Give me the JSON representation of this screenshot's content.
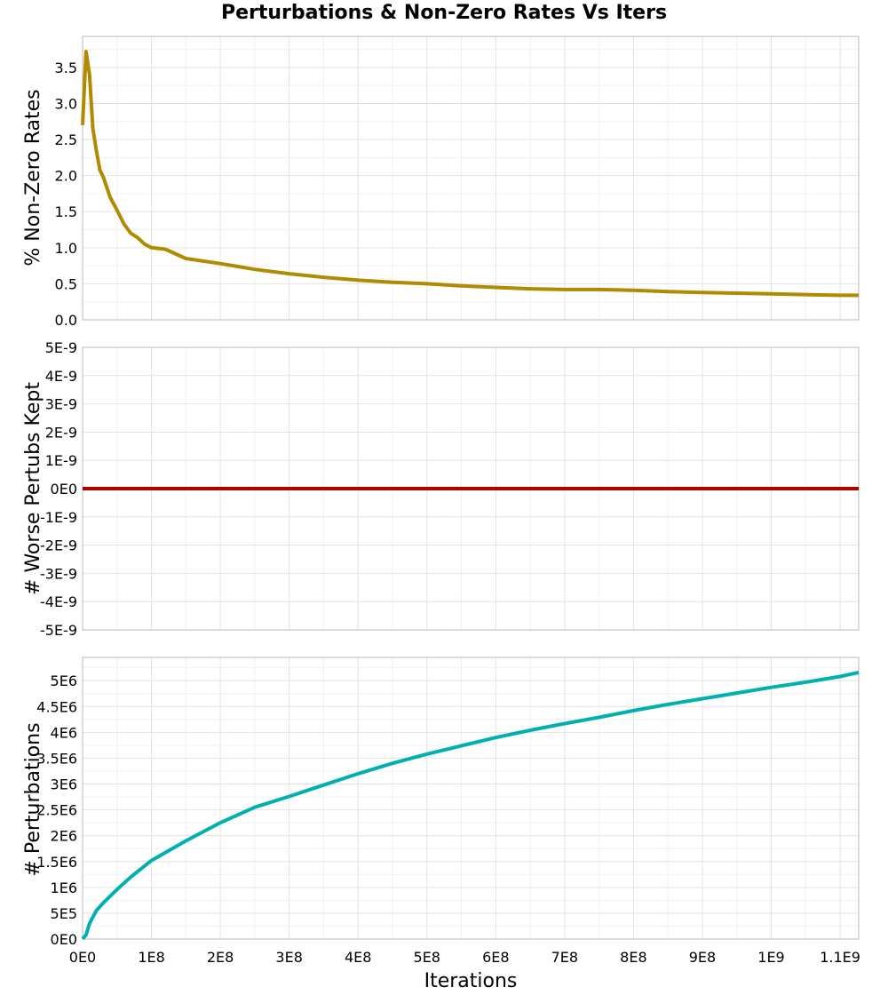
{
  "title": "Perturbations & Non-Zero Rates Vs Iters",
  "xlabel": "Iterations",
  "x_ticks": [
    "0E0",
    "1E8",
    "2E8",
    "3E8",
    "4E8",
    "5E8",
    "6E8",
    "7E8",
    "8E8",
    "9E8",
    "1E9",
    "1.1E9"
  ],
  "panels": [
    {
      "ylabel": "% Non-Zero Rates",
      "y_ticks": [
        "0.0",
        "0.5",
        "1.0",
        "1.5",
        "2.0",
        "2.5",
        "3.0",
        "3.5"
      ],
      "color": "#b08a00"
    },
    {
      "ylabel": "# Worse Pertubs Kept",
      "y_ticks": [
        "-5E-9",
        "-4E-9",
        "-3E-9",
        "-2E-9",
        "-1E-9",
        "0E0",
        "1E-9",
        "2E-9",
        "3E-9",
        "4E-9",
        "5E-9"
      ],
      "color": "#b00000"
    },
    {
      "ylabel": "# Perturbations",
      "y_ticks": [
        "0E0",
        "5E5",
        "1E6",
        "1.5E6",
        "2E6",
        "2.5E6",
        "3E6",
        "3.5E6",
        "4E6",
        "4.5E6",
        "5E6"
      ],
      "color": "#00b0b0"
    }
  ],
  "chart_data": [
    {
      "type": "line",
      "title": "Perturbations & Non-Zero Rates Vs Iters",
      "xlabel": "Iterations",
      "ylabel": "% Non-Zero Rates",
      "xlim": [
        0,
        1127000000.0
      ],
      "ylim": [
        0,
        3.9
      ],
      "grid": true,
      "series": [
        {
          "name": "% Non-Zero Rates",
          "color": "#b08a00",
          "x": [
            0,
            5000000.0,
            10000000.0,
            15000000.0,
            20000000.0,
            25000000.0,
            30000000.0,
            40000000.0,
            50000000.0,
            60000000.0,
            70000000.0,
            80000000.0,
            90000000.0,
            100000000.0,
            120000000.0,
            150000000.0,
            200000000.0,
            250000000.0,
            300000000.0,
            350000000.0,
            400000000.0,
            450000000.0,
            500000000.0,
            550000000.0,
            600000000.0,
            650000000.0,
            700000000.0,
            750000000.0,
            800000000.0,
            850000000.0,
            900000000.0,
            950000000.0,
            1000000000.0,
            1050000000.0,
            1100000000.0,
            1127000000.0
          ],
          "values": [
            2.7,
            3.72,
            3.4,
            2.65,
            2.35,
            2.08,
            1.98,
            1.7,
            1.52,
            1.33,
            1.2,
            1.14,
            1.05,
            1.0,
            0.98,
            0.85,
            0.78,
            0.7,
            0.64,
            0.59,
            0.55,
            0.52,
            0.5,
            0.47,
            0.45,
            0.43,
            0.42,
            0.42,
            0.41,
            0.39,
            0.38,
            0.37,
            0.36,
            0.35,
            0.34,
            0.34
          ]
        }
      ]
    },
    {
      "type": "line",
      "xlabel": "Iterations",
      "ylabel": "# Worse Pertubs Kept",
      "xlim": [
        0,
        1127000000.0
      ],
      "ylim": [
        -5e-09,
        5e-09
      ],
      "grid": true,
      "series": [
        {
          "name": "# Worse Pertubs Kept",
          "color": "#b00000",
          "x": [
            0,
            1127000000.0
          ],
          "values": [
            0,
            0
          ]
        }
      ]
    },
    {
      "type": "line",
      "xlabel": "Iterations",
      "ylabel": "# Perturbations",
      "xlim": [
        0,
        1127000000.0
      ],
      "ylim": [
        0,
        5400000.0
      ],
      "grid": true,
      "series": [
        {
          "name": "# Perturbations",
          "color": "#00b0b0",
          "x": [
            0,
            5000000.0,
            10000000.0,
            20000000.0,
            30000000.0,
            50000000.0,
            70000000.0,
            100000000.0,
            150000000.0,
            200000000.0,
            250000000.0,
            300000000.0,
            350000000.0,
            400000000.0,
            450000000.0,
            500000000.0,
            550000000.0,
            600000000.0,
            650000000.0,
            700000000.0,
            750000000.0,
            800000000.0,
            850000000.0,
            900000000.0,
            950000000.0,
            1000000000.0,
            1050000000.0,
            1100000000.0,
            1127000000.0
          ],
          "values": [
            0,
            80000,
            300000,
            550000,
            700000,
            960000,
            1200000,
            1520000,
            1900000,
            2250000,
            2550000,
            2760000,
            2980000,
            3200000,
            3400000,
            3580000,
            3740000,
            3900000,
            4040000,
            4170000,
            4290000,
            4420000,
            4540000,
            4650000,
            4760000,
            4870000,
            4970000,
            5080000,
            5160000
          ]
        }
      ]
    }
  ]
}
